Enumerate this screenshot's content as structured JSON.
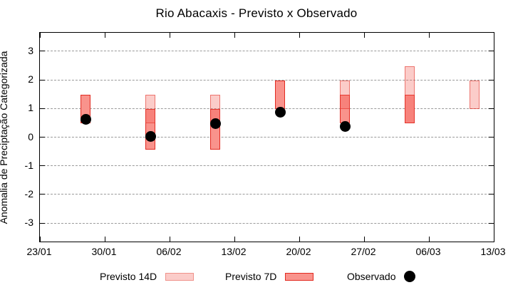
{
  "chart_data": {
    "type": "bar",
    "title": "Rio Abacaxis - Previsto x Observado",
    "ylabel": "Anomalia de Preciptação Categorizada",
    "xlabel": "",
    "ylim": [
      -3.64,
      3.64
    ],
    "yticks": [
      3,
      2,
      1,
      0,
      -1,
      -2,
      -3
    ],
    "xtick_labels": [
      "23/01",
      "30/01",
      "06/02",
      "13/02",
      "20/02",
      "27/02",
      "06/03",
      "13/03"
    ],
    "x_total_days": 49,
    "x_tick_every_days": 7,
    "grid": "horizontal dashed",
    "legend_position": "bottom",
    "series": [
      {
        "name": "Previsto 14D",
        "type": "range-bar",
        "color": "#fbccc9",
        "border": "#ef928b"
      },
      {
        "name": "Previsto 7D",
        "type": "range-bar",
        "color": "#f9938c",
        "border": "#e22b22"
      },
      {
        "name": "Observado",
        "type": "scatter",
        "color": "#000000"
      }
    ],
    "bar_styles": {
      "previsto_14d_fill": "rgba(243,96,86,0.32)",
      "previsto_14d_border": "rgba(226,43,34,0.55)",
      "previsto_7d_fill": "#f9938c",
      "previsto_7d_border": "#e22b22",
      "observado_color": "#000000"
    },
    "groups": [
      {
        "date": "28/01",
        "day": 5,
        "previsto_14d": null,
        "previsto_7d": [
          0.45,
          1.45
        ],
        "observado": 0.6
      },
      {
        "date": "04/02",
        "day": 12,
        "previsto_14d": [
          0.45,
          1.45
        ],
        "previsto_7d": [
          -0.45,
          0.95
        ],
        "observado": 0.0
      },
      {
        "date": "11/02",
        "day": 19,
        "previsto_14d": [
          0.45,
          1.45
        ],
        "previsto_7d": [
          -0.45,
          0.95
        ],
        "observado": 0.45
      },
      {
        "date": "18/02",
        "day": 26,
        "previsto_14d": null,
        "previsto_7d": [
          0.95,
          1.95
        ],
        "observado": 0.85
      },
      {
        "date": "25/02",
        "day": 33,
        "previsto_14d": [
          0.95,
          1.95
        ],
        "previsto_7d": [
          0.45,
          1.45
        ],
        "observado": 0.35
      },
      {
        "date": "04/03",
        "day": 40,
        "previsto_14d": [
          0.45,
          2.45
        ],
        "previsto_7d": [
          0.45,
          1.45
        ],
        "observado": null
      },
      {
        "date": "11/03",
        "day": 47,
        "previsto_14d": [
          0.95,
          1.95
        ],
        "previsto_7d": null,
        "observado": null
      }
    ]
  }
}
